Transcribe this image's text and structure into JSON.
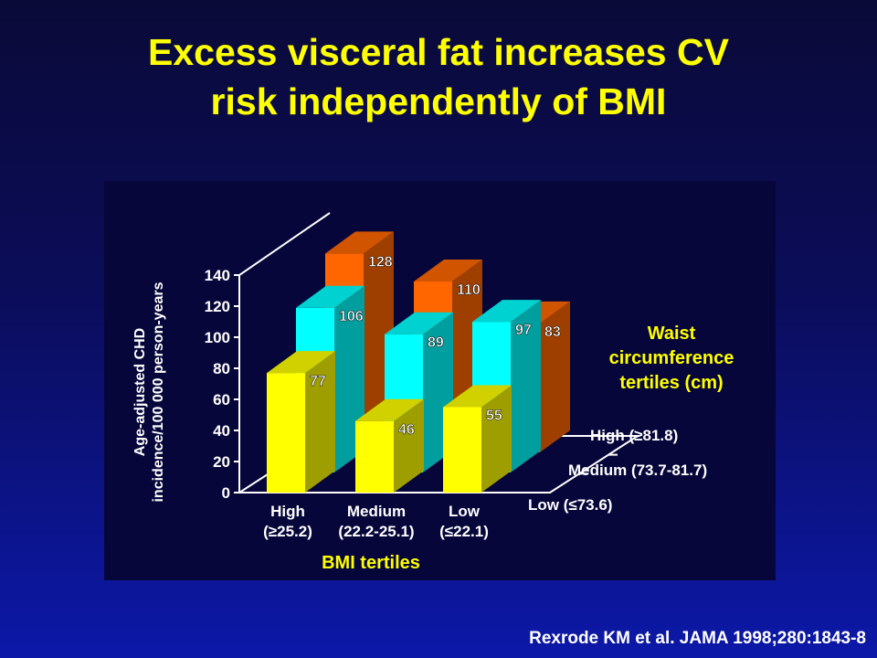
{
  "title": {
    "line1": "Excess visceral fat increases CV",
    "line2": "risk independently of BMI"
  },
  "citation": "Rexrode KM et al.  JAMA 1998;280:1843-8",
  "chart_data": {
    "type": "bar",
    "variant": "3d-grouped",
    "ylabel_line1": "Age-adjusted CHD",
    "ylabel_line2": "incidence/100 000 person-years",
    "xlabel": "BMI tertiles",
    "ylim": [
      0,
      140
    ],
    "yticks": [
      "0",
      "20",
      "40",
      "60",
      "80",
      "100",
      "120",
      "140"
    ],
    "categories": [
      {
        "line1": "High",
        "line2": "(≥25.2)"
      },
      {
        "line1": "Medium",
        "line2": "(22.2-25.1)"
      },
      {
        "line1": "Low",
        "line2": "(≤22.1)"
      }
    ],
    "legend_title": [
      "Waist",
      "circumference",
      "tertiles (cm)"
    ],
    "depth_labels": [
      "Low (≤73.6)",
      "Medium (73.7-81.7)",
      "High (≥81.8)"
    ],
    "series": [
      {
        "name": "Low (≤73.6)",
        "color": "#ffff00",
        "values": [
          77,
          46,
          55
        ]
      },
      {
        "name": "Medium (73.7-81.7)",
        "color": "#00ffff",
        "values": [
          106,
          89,
          97
        ]
      },
      {
        "name": "High (≥81.8)",
        "color": "#ff6600",
        "values": [
          128,
          110,
          83
        ]
      }
    ],
    "colors": {
      "title": "#ffff00",
      "axis_text": "#ffffff",
      "legend_text": "#ffff00",
      "panel_bg": "#06063a"
    }
  }
}
